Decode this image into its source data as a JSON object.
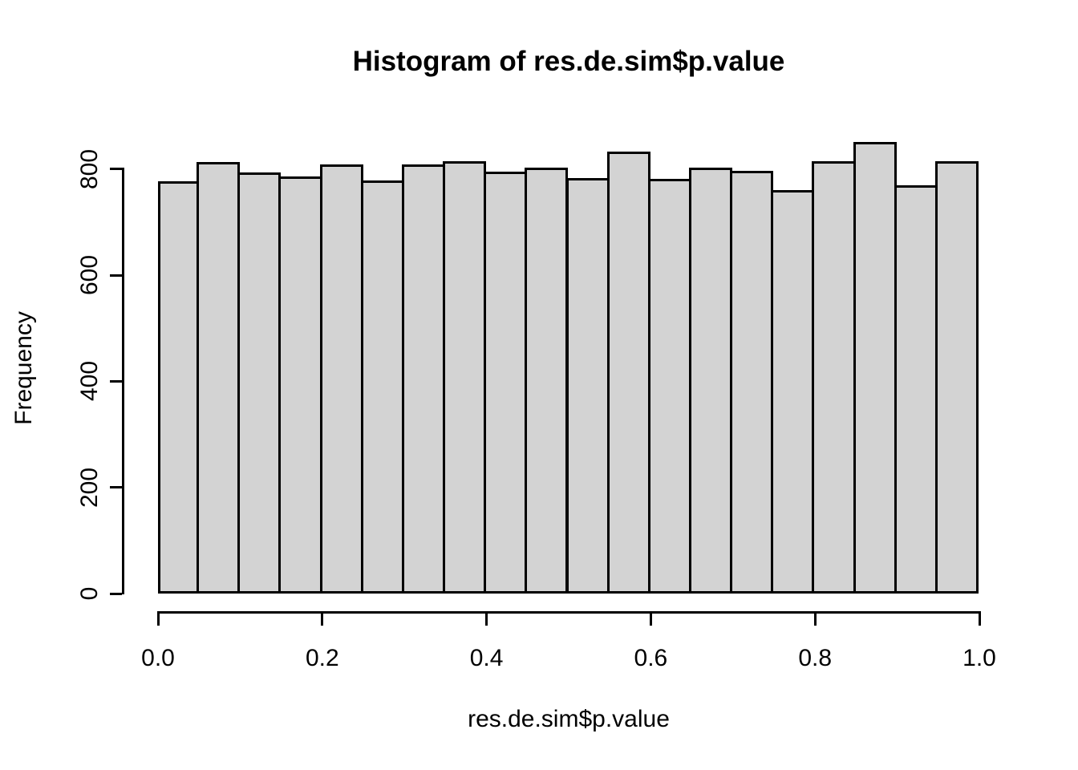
{
  "chart_data": {
    "type": "bar",
    "subtype": "histogram",
    "title": "Histogram of res.de.sim$p.value",
    "xlabel": "res.de.sim$p.value",
    "ylabel": "Frequency",
    "bin_width": 0.05,
    "bin_edges": [
      0.0,
      0.05,
      0.1,
      0.15,
      0.2,
      0.25,
      0.3,
      0.35,
      0.4,
      0.45,
      0.5,
      0.55,
      0.6,
      0.65,
      0.7,
      0.75,
      0.8,
      0.85,
      0.9,
      0.95,
      1.0
    ],
    "values": [
      775,
      811,
      791,
      783,
      807,
      776,
      806,
      812,
      793,
      800,
      780,
      831,
      779,
      800,
      794,
      758,
      812,
      849,
      767,
      812
    ],
    "xlim": [
      0.0,
      1.0
    ],
    "ylim": [
      0,
      860
    ],
    "x_ticks": [
      0.0,
      0.2,
      0.4,
      0.6,
      0.8,
      1.0
    ],
    "x_tick_labels": [
      "0.0",
      "0.2",
      "0.4",
      "0.6",
      "0.8",
      "1.0"
    ],
    "y_ticks": [
      0,
      200,
      400,
      600,
      800
    ],
    "y_tick_labels": [
      "0",
      "200",
      "400",
      "600",
      "800"
    ],
    "grid": false,
    "legend": false,
    "bar_fill": "#d3d3d3",
    "bar_border": "#000000",
    "axis_color": "#000000",
    "text_color": "#000000",
    "background": "#ffffff"
  }
}
